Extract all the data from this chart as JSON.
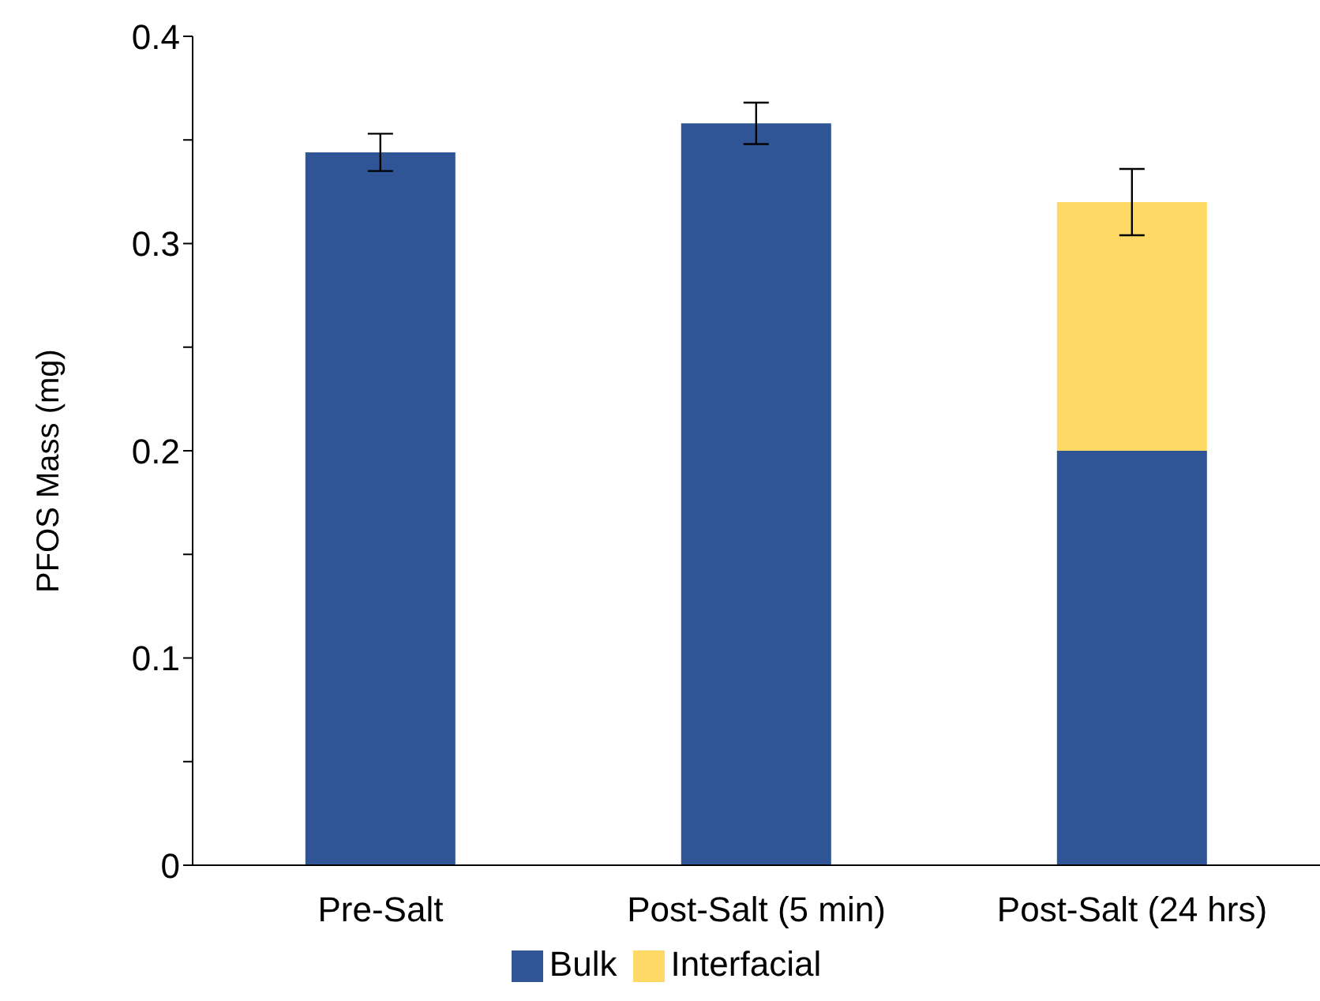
{
  "chart_data": {
    "type": "bar",
    "stacked": true,
    "ylabel": "PFOS Mass (mg)",
    "categories": [
      "Pre-Salt",
      "Post-Salt (5 min)",
      "Post-Salt (24 hrs)"
    ],
    "series": [
      {
        "name": "Bulk",
        "color": "#2f5597",
        "values": [
          0.344,
          0.358,
          0.2
        ],
        "errors": [
          0.009,
          0.01,
          null
        ]
      },
      {
        "name": "Interfacial",
        "color": "#ffd966",
        "values": [
          null,
          null,
          0.12
        ],
        "errors": [
          null,
          null,
          0.016
        ]
      }
    ],
    "ylim": [
      0,
      0.4
    ],
    "yticks": [
      0,
      {
        "value": 0.05,
        "label": null
      },
      0.1,
      {
        "value": 0.15,
        "label": null
      },
      0.2,
      {
        "value": 0.25,
        "label": null
      },
      0.3,
      {
        "value": 0.35,
        "label": null
      },
      0.4
    ],
    "grid": false,
    "legend": "bottom"
  }
}
